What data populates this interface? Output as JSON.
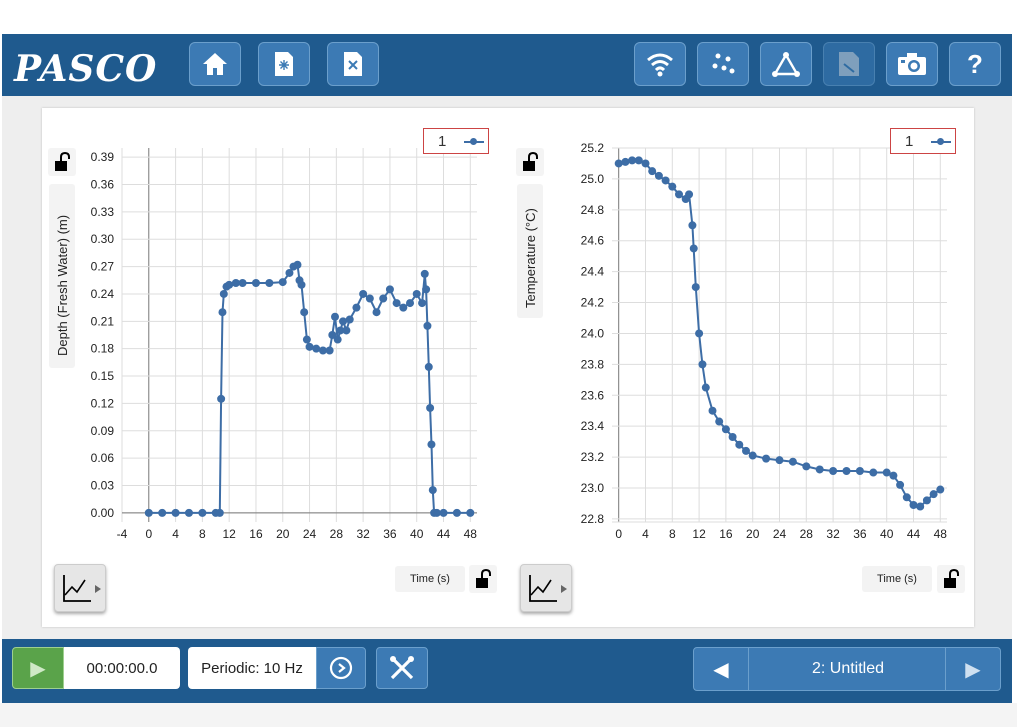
{
  "app": {
    "logo": "PASCO"
  },
  "toolbar": {
    "left_icons": [
      "home-icon",
      "new-file-icon",
      "close-file-icon"
    ],
    "right_icons": [
      "wireless-icon",
      "sensors-icon",
      "graph-tool-icon",
      "notes-icon",
      "camera-icon",
      "help-icon"
    ],
    "help_label": "?"
  },
  "bottom": {
    "timer": "00:00:00.0",
    "sample_rate": "Periodic: 10 Hz",
    "page_title": "2: Untitled"
  },
  "chart_data": [
    {
      "type": "scatter",
      "title": "",
      "legend_label": "1",
      "legend_position": "top-right",
      "xlabel": "Time (s)",
      "ylabel": "Depth (Fresh Water) (m)",
      "grid": true,
      "color": "#3d6da6",
      "xlim": [
        -4,
        49
      ],
      "ylim": [
        -0.01,
        0.4
      ],
      "xticks": [
        -4,
        0,
        4,
        8,
        12,
        16,
        20,
        24,
        28,
        32,
        36,
        40,
        44,
        48
      ],
      "yticks": [
        "0.00",
        "0.03",
        "0.06",
        "0.09",
        "0.12",
        "0.15",
        "0.18",
        "0.21",
        "0.24",
        "0.27",
        "0.30",
        "0.33",
        "0.36",
        "0.39"
      ],
      "x": [
        0,
        2,
        4,
        6,
        8,
        10,
        10.6,
        10.8,
        11,
        11.2,
        11.6,
        12,
        13,
        14,
        16,
        18,
        20,
        21,
        21.6,
        22.2,
        22.5,
        22.8,
        23.2,
        23.6,
        24,
        25,
        26,
        27,
        27.4,
        27.8,
        28.2,
        28.6,
        29,
        29.5,
        30,
        31,
        32,
        33,
        34,
        35,
        36,
        37,
        38,
        39,
        40,
        40.8,
        41.2,
        41.4,
        41.6,
        41.8,
        42,
        42.2,
        42.4,
        42.6,
        43,
        44,
        46,
        48
      ],
      "y": [
        0,
        0,
        0,
        0,
        0,
        0,
        0,
        0.125,
        0.22,
        0.24,
        0.248,
        0.25,
        0.252,
        0.252,
        0.252,
        0.252,
        0.253,
        0.263,
        0.27,
        0.272,
        0.255,
        0.25,
        0.22,
        0.19,
        0.182,
        0.18,
        0.178,
        0.178,
        0.195,
        0.215,
        0.19,
        0.2,
        0.21,
        0.2,
        0.212,
        0.225,
        0.24,
        0.235,
        0.22,
        0.235,
        0.245,
        0.23,
        0.225,
        0.23,
        0.24,
        0.23,
        0.262,
        0.245,
        0.205,
        0.16,
        0.115,
        0.075,
        0.025,
        0,
        0,
        0,
        0,
        0
      ]
    },
    {
      "type": "scatter",
      "title": "",
      "legend_label": "1",
      "legend_position": "top-right",
      "xlabel": "Time (s)",
      "ylabel": "Temperature (°C)",
      "grid": true,
      "color": "#3d6da6",
      "xlim": [
        -1,
        49
      ],
      "ylim": [
        22.78,
        25.2
      ],
      "xticks": [
        0,
        4,
        8,
        12,
        16,
        20,
        24,
        28,
        32,
        36,
        40,
        44,
        48
      ],
      "yticks": [
        "22.8",
        "23.0",
        "23.2",
        "23.4",
        "23.6",
        "23.8",
        "24.0",
        "24.2",
        "24.4",
        "24.6",
        "24.8",
        "25.0",
        "25.2"
      ],
      "x": [
        0,
        1,
        2,
        3,
        4,
        5,
        6,
        7,
        8,
        9,
        10,
        10.5,
        11,
        11.2,
        11.5,
        12,
        12.5,
        13,
        14,
        15,
        16,
        17,
        18,
        19,
        20,
        22,
        24,
        26,
        28,
        30,
        32,
        34,
        36,
        38,
        40,
        41,
        42,
        43,
        44,
        45,
        46,
        47,
        48
      ],
      "y": [
        25.1,
        25.11,
        25.12,
        25.12,
        25.1,
        25.05,
        25.02,
        24.99,
        24.95,
        24.9,
        24.87,
        24.9,
        24.7,
        24.55,
        24.3,
        24.0,
        23.8,
        23.65,
        23.5,
        23.43,
        23.38,
        23.33,
        23.28,
        23.24,
        23.21,
        23.19,
        23.18,
        23.17,
        23.14,
        23.12,
        23.11,
        23.11,
        23.11,
        23.1,
        23.1,
        23.08,
        23.02,
        22.94,
        22.89,
        22.88,
        22.92,
        22.96,
        22.99
      ]
    }
  ]
}
